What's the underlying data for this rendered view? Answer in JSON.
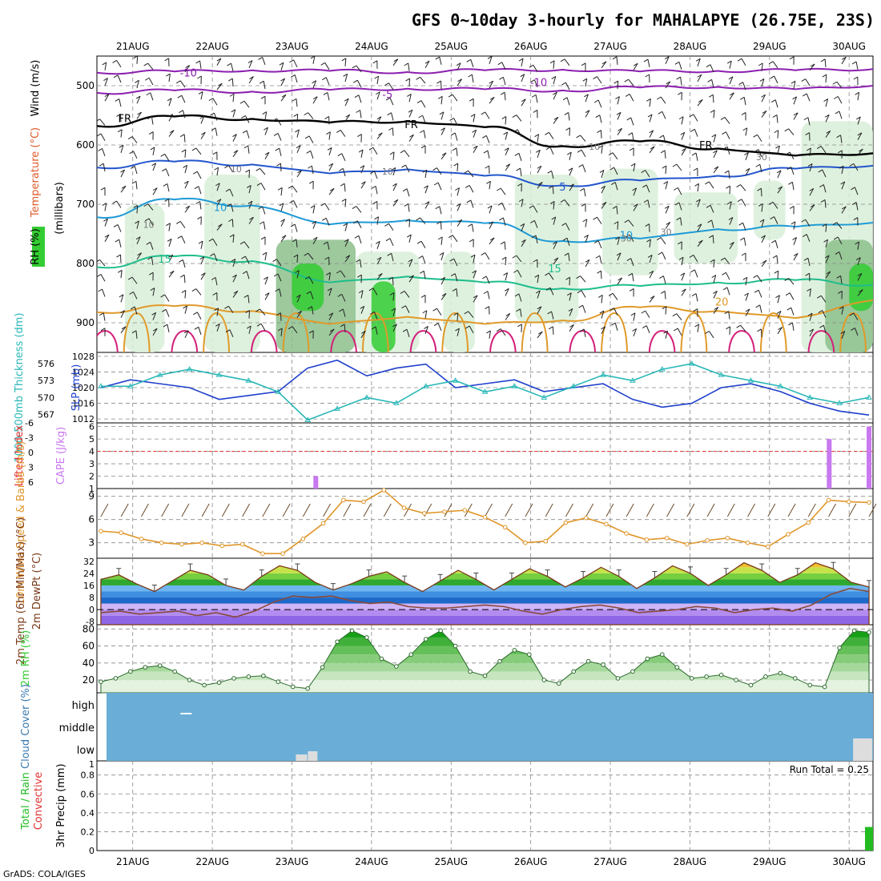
{
  "title": "GFS 0~10day 3-hourly for MAHALAPYE (26.75E, 23S)",
  "footer": "GrADS: COLA/IGES",
  "colors": {
    "temp_purple": "#8c1fb0",
    "temp_blue": "#2255cc",
    "temp_cyan": "#1e9ad6",
    "temp_green": "#1dbd8c",
    "temp_orange": "#e09a2a",
    "temp_magenta": "#d4207a",
    "rh_light": "#d8eed8",
    "rh_mid": "#8cc08c",
    "rh_dark": "#33cc33",
    "slp": "#1f3fcc",
    "thickness": "#2ab7b7",
    "cape": "#c878f0",
    "li": "#e83030",
    "wind10m": "#e0962a",
    "cloud": "#6aaed8",
    "precip": "#22bb22"
  },
  "chart_data": [
    {
      "type": "heatmap",
      "panel": "upper-air",
      "ylabel": "(millibars)",
      "ytick_labels": [
        "500",
        "600",
        "700",
        "800",
        "900"
      ],
      "yticks": [
        500,
        600,
        700,
        800,
        900
      ],
      "ylim": [
        450,
        950
      ],
      "xtick_labels": [
        "21AUG",
        "22AUG",
        "23AUG",
        "24AUG",
        "25AUG",
        "26AUG",
        "27AUG",
        "28AUG",
        "29AUG",
        "30AUG"
      ],
      "legend_labels": [
        "Wind (m/s)",
        "Temperature (°C)",
        "RH (%)"
      ],
      "contour_labels": [
        "-10",
        "-10",
        "-5",
        "FR",
        "FR",
        "FR",
        "5",
        "10",
        "10",
        "15",
        "15",
        "20"
      ],
      "rh_labels": [
        "10",
        "10",
        "10",
        "30",
        "30",
        "30",
        "10"
      ],
      "isotherms": [
        {
          "label": "-10",
          "pressure_levels": [
            478,
            476,
            474,
            475,
            477,
            474,
            473,
            476,
            475,
            474,
            472
          ]
        },
        {
          "label": "-5",
          "pressure_levels": [
            512,
            508,
            510,
            507,
            505,
            506,
            508,
            503,
            502,
            506,
            500
          ]
        },
        {
          "label": "FR",
          "pressure_levels": [
            568,
            552,
            556,
            562,
            560,
            570,
            602,
            594,
            606,
            618,
            614
          ]
        },
        {
          "label": "5",
          "pressure_levels": [
            638,
            628,
            633,
            648,
            641,
            652,
            668,
            660,
            652,
            640,
            635
          ]
        },
        {
          "label": "10",
          "pressure_levels": [
            722,
            692,
            702,
            734,
            727,
            732,
            762,
            758,
            742,
            738,
            731
          ]
        },
        {
          "label": "15",
          "pressure_levels": [
            806,
            788,
            796,
            832,
            822,
            832,
            842,
            838,
            832,
            828,
            836
          ]
        },
        {
          "label": "20",
          "pressure_levels": [
            882,
            872,
            880,
            902,
            890,
            902,
            896,
            874,
            880,
            892,
            862
          ]
        }
      ]
    },
    {
      "type": "line",
      "panel": "sea-level-pressure-and-thickness",
      "series": [
        {
          "name": "SLP (mb)",
          "values": [
            1020,
            1022,
            1021,
            1020,
            1017,
            1018,
            1019,
            1025,
            1027,
            1023,
            1025,
            1026,
            1020,
            1021,
            1022,
            1019,
            1020,
            1021,
            1017,
            1015,
            1016,
            1020,
            1021,
            1019,
            1016,
            1014,
            1013
          ]
        },
        {
          "name": "1000-500mb Thickness (dm)",
          "values": [
            572,
            572,
            574,
            575,
            574,
            573,
            571,
            566,
            568,
            570,
            569,
            572,
            573,
            571,
            572,
            570,
            572,
            574,
            573,
            575,
            576,
            574,
            573,
            572,
            570,
            569,
            570
          ]
        }
      ],
      "left_ticks": [
        "576",
        "573",
        "570",
        "567"
      ],
      "right_ticks": [
        "1028",
        "1024",
        "1020",
        "1016",
        "1012"
      ]
    },
    {
      "type": "bar",
      "panel": "cape-lifted-index",
      "series": [
        {
          "name": "CAPE (J/kg)",
          "points": [
            {
              "day": 23.3,
              "value": 2
            },
            {
              "day": 29.75,
              "value": 5
            },
            {
              "day": 30.25,
              "value": 6
            }
          ]
        },
        {
          "name": "Lifted Index",
          "values": [
            0
          ]
        }
      ],
      "left_ticks": [
        "-6",
        "-3",
        "0",
        "3",
        "6"
      ],
      "right_ticks": [
        "6",
        "5",
        "4",
        "3",
        "2",
        "1"
      ]
    },
    {
      "type": "line",
      "panel": "10m-wind",
      "series": [
        {
          "name": "10m Wind Speed & Barbs (m/s)",
          "values": [
            4.5,
            4.3,
            3.5,
            3.0,
            2.8,
            3.0,
            2.6,
            2.8,
            1.6,
            1.6,
            3.5,
            5.5,
            8.5,
            8.3,
            9.8,
            7.5,
            6.8,
            7.0,
            7.2,
            6.3,
            5.0,
            3.0,
            3.2,
            5.6,
            6.2,
            5.4,
            4.2,
            3.4,
            3.6,
            2.8,
            3.3,
            3.6,
            3.0,
            2.5,
            4.1,
            5.6,
            8.5,
            8.3,
            8.2
          ]
        }
      ],
      "ticks": [
        "9",
        "6",
        "3"
      ],
      "ylim": [
        1,
        10
      ]
    },
    {
      "type": "area",
      "panel": "2m-temperature",
      "series": [
        {
          "name": "2m Temp (6hr Min/Max) (°C)",
          "values": [
            20,
            23,
            17,
            12,
            19,
            26,
            23,
            16,
            13,
            22,
            29,
            26,
            18,
            13,
            17,
            22,
            25,
            18,
            12,
            19,
            26,
            20,
            13,
            20,
            27,
            22,
            15,
            21,
            28,
            22,
            14,
            21,
            29,
            24,
            16,
            23,
            31,
            26,
            18,
            23,
            31,
            27,
            18,
            15
          ]
        },
        {
          "name": "2m DewPt (°C)",
          "values": [
            -2,
            -1,
            -3,
            -2,
            -1,
            -4,
            -2,
            -5,
            -1,
            5,
            9,
            8,
            9,
            6,
            4,
            5,
            2,
            1,
            1,
            2,
            3,
            2,
            -1,
            -3,
            0,
            2,
            3,
            1,
            -2,
            -1,
            0,
            2,
            1,
            -2,
            0,
            1,
            -1,
            3,
            10,
            14,
            12
          ]
        }
      ],
      "ticks": [
        "32",
        "24",
        "16",
        "8",
        "0",
        "-8"
      ],
      "ylim": [
        -10,
        34
      ]
    },
    {
      "type": "area",
      "panel": "2m-relative-humidity",
      "series": [
        {
          "name": "2m RH (%)",
          "values": [
            18,
            22,
            30,
            35,
            37,
            30,
            20,
            14,
            17,
            22,
            24,
            25,
            18,
            12,
            10,
            35,
            65,
            78,
            70,
            45,
            36,
            50,
            68,
            78,
            60,
            30,
            25,
            42,
            55,
            50,
            20,
            16,
            30,
            42,
            38,
            22,
            30,
            45,
            50,
            35,
            22,
            24,
            26,
            20,
            14,
            24,
            28,
            22,
            14,
            12,
            58,
            78,
            76
          ]
        }
      ],
      "ticks": [
        "80",
        "60",
        "40",
        "20"
      ],
      "ylim": [
        5,
        85
      ]
    },
    {
      "type": "heatmap",
      "panel": "cloud-cover",
      "ylabel": "Cloud Cover (%)",
      "levels": [
        "high",
        "middle",
        "low"
      ]
    },
    {
      "type": "bar",
      "panel": "3hr-precip",
      "series": [
        {
          "name": "Total / Rain",
          "points": [
            {
              "day": 30.25,
              "value": 0.25
            }
          ]
        },
        {
          "name": "Convective",
          "points": []
        }
      ],
      "ylabel": "3hr Precip (mm)",
      "annotation": "Run Total = 0.25",
      "ticks": [
        "0.8",
        "0.6",
        "0.4",
        "0.2",
        "0"
      ],
      "ylim": [
        0,
        0.95
      ]
    }
  ]
}
